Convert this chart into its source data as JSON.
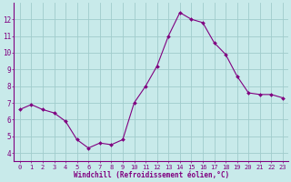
{
  "x": [
    0,
    1,
    2,
    3,
    4,
    5,
    6,
    7,
    8,
    9,
    10,
    11,
    12,
    13,
    14,
    15,
    16,
    17,
    18,
    19,
    20,
    21,
    22,
    23
  ],
  "y": [
    6.6,
    6.9,
    6.6,
    6.4,
    5.9,
    4.8,
    4.3,
    4.6,
    4.5,
    4.8,
    7.0,
    8.0,
    9.2,
    11.0,
    12.4,
    12.0,
    11.8,
    10.6,
    9.9,
    8.6,
    7.6,
    7.5,
    7.5,
    7.3
  ],
  "line_color": "#800080",
  "marker": "D",
  "marker_size": 2.0,
  "bg_color": "#c8eaea",
  "grid_color": "#a0cccc",
  "xlabel": "Windchill (Refroidissement éolien,°C)",
  "tick_color": "#800080",
  "spine_color": "#800080",
  "ylim": [
    3.5,
    13.0
  ],
  "xlim": [
    -0.5,
    23.5
  ],
  "yticks": [
    4,
    5,
    6,
    7,
    8,
    9,
    10,
    11,
    12
  ],
  "xticks": [
    0,
    1,
    2,
    3,
    4,
    5,
    6,
    7,
    8,
    9,
    10,
    11,
    12,
    13,
    14,
    15,
    16,
    17,
    18,
    19,
    20,
    21,
    22,
    23
  ],
  "tick_fontsize": 5.0,
  "xlabel_fontsize": 5.5,
  "linewidth": 0.8
}
